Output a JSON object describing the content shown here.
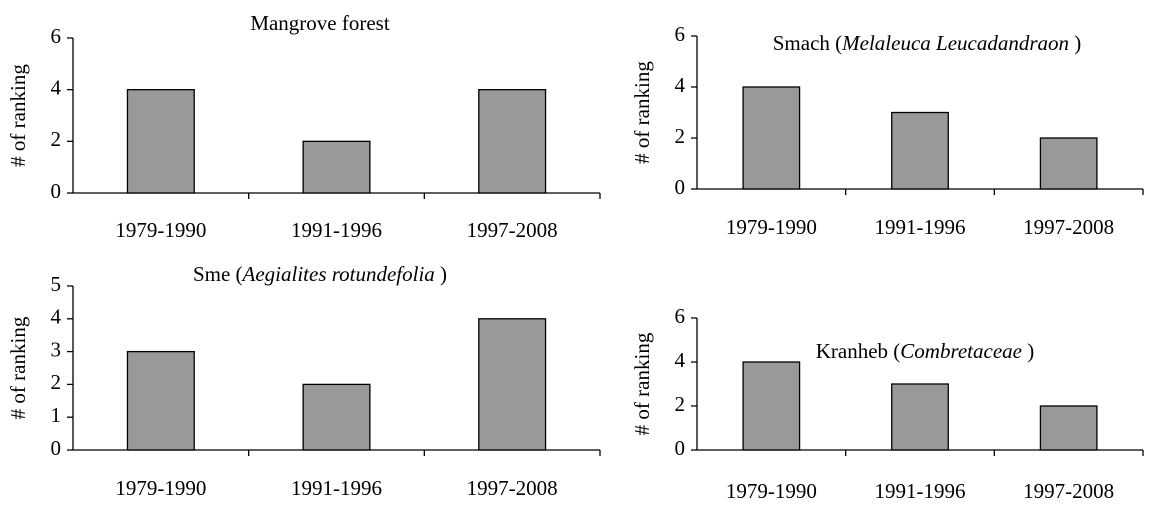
{
  "chart_data": [
    {
      "type": "bar",
      "title": [
        "Mangrove forest"
      ],
      "title_italic": [
        false
      ],
      "ylabel": "# of ranking",
      "categories": [
        "1979-1990",
        "1991-1996",
        "1997-2008"
      ],
      "values": [
        4,
        2,
        4
      ],
      "color": "#999999",
      "ylim": [
        0,
        6
      ],
      "yticks": [
        0,
        2,
        4,
        6
      ]
    },
    {
      "type": "bar",
      "title": [
        "Smach (",
        "Melaleuca Leucadandraon",
        " )"
      ],
      "title_italic": [
        false,
        true,
        false
      ],
      "ylabel": "# of ranking",
      "categories": [
        "1979-1990",
        "1991-1996",
        "1997-2008"
      ],
      "values": [
        4,
        3,
        2
      ],
      "color": "#999999",
      "ylim": [
        0,
        6
      ],
      "yticks": [
        0,
        2,
        4,
        6
      ]
    },
    {
      "type": "bar",
      "title": [
        "Sme (",
        "Aegialites rotundefolia",
        " )"
      ],
      "title_italic": [
        false,
        true,
        false
      ],
      "ylabel": "# of ranking",
      "categories": [
        "1979-1990",
        "1991-1996",
        "1997-2008"
      ],
      "values": [
        3,
        2,
        4
      ],
      "color": "#999999",
      "ylim": [
        0,
        5
      ],
      "yticks": [
        0,
        1,
        2,
        3,
        4,
        5
      ]
    },
    {
      "type": "bar",
      "title": [
        "Kranheb (",
        "Combretaceae",
        " )"
      ],
      "title_italic": [
        false,
        true,
        false
      ],
      "ylabel": "# of ranking",
      "categories": [
        "1979-1990",
        "1991-1996",
        "1997-2008"
      ],
      "values": [
        4,
        3,
        2
      ],
      "color": "#999999",
      "ylim": [
        0,
        6
      ],
      "yticks": [
        0,
        2,
        4,
        6
      ]
    }
  ]
}
